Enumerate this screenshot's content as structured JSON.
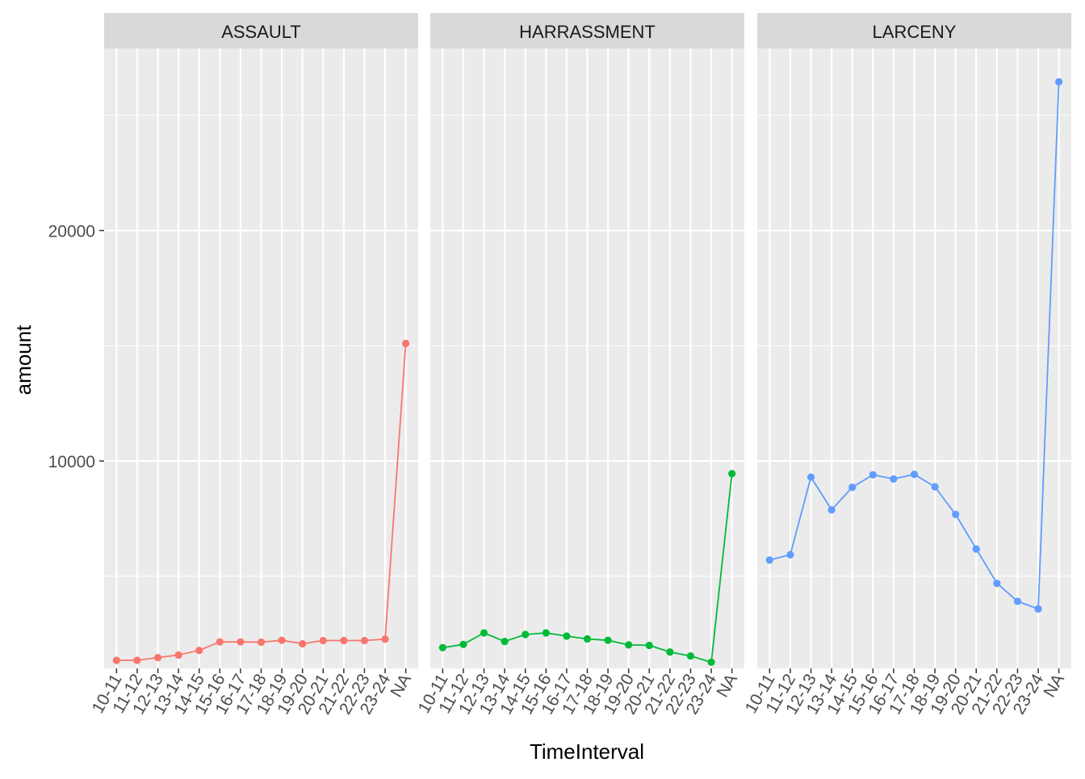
{
  "chart_data": {
    "type": "line",
    "facet_layout": "1 row x 3 columns, shared y-axis",
    "xlabel": "TimeInterval",
    "ylabel": "amount",
    "categories": [
      "10-11",
      "11-12",
      "12-13",
      "13-14",
      "14-15",
      "15-16",
      "16-17",
      "17-18",
      "18-19",
      "19-20",
      "20-21",
      "21-22",
      "22-23",
      "23-24",
      "NA"
    ],
    "y_ticks": [
      10000,
      20000
    ],
    "y_tick_labels": [
      "10000",
      "20000"
    ],
    "ylim": [
      1000,
      27900
    ],
    "grid": true,
    "legend": "none",
    "markers": true,
    "panels": [
      {
        "name": "ASSAULT",
        "color": "#F8766D",
        "values": [
          1350,
          1350,
          1470,
          1580,
          1780,
          2150,
          2150,
          2140,
          2220,
          2070,
          2210,
          2210,
          2210,
          2270,
          15100
        ]
      },
      {
        "name": "HARRASSMENT",
        "color": "#00BA38",
        "values": [
          1900,
          2040,
          2540,
          2170,
          2470,
          2540,
          2400,
          2280,
          2220,
          2020,
          2000,
          1710,
          1540,
          1270,
          9450
        ]
      },
      {
        "name": "LARCENY",
        "color": "#619CFF",
        "values": [
          5700,
          5930,
          9300,
          7880,
          8860,
          9400,
          9220,
          9420,
          8880,
          7680,
          6180,
          4690,
          3910,
          3580,
          26450
        ]
      }
    ]
  }
}
